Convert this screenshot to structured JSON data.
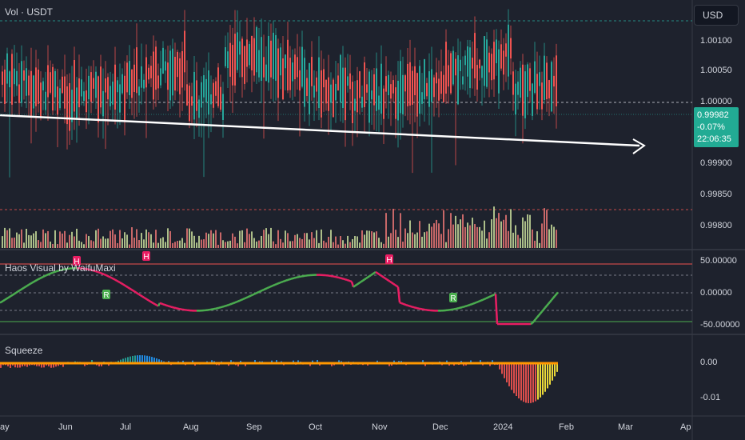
{
  "symbol_legend": "Vol · USDT",
  "currency_button": "USD",
  "last_price": {
    "value": "0.99982",
    "change": "-0.07%",
    "countdown": "22:06:35"
  },
  "main_axis_labels": [
    "1.00100",
    "1.00050",
    "1.00000",
    "0.99900",
    "0.99850",
    "0.99800"
  ],
  "indicator1": {
    "title": "Haos Visual by WaifuMaxi",
    "axis_labels": [
      "50.00000",
      "0.00000",
      "-50.00000"
    ],
    "markers": [
      "H",
      "H",
      "H",
      "R",
      "R"
    ]
  },
  "indicator2": {
    "title": "Squeeze",
    "axis_labels": [
      "0.00",
      "-0.01"
    ]
  },
  "time_axis": [
    "ay",
    "Jun",
    "Jul",
    "Aug",
    "Sep",
    "Oct",
    "Nov",
    "Dec",
    "2024",
    "Feb",
    "Mar",
    "Ap"
  ],
  "colors": {
    "background": "#1e222d",
    "up": "#26a69a",
    "down": "#ef5350",
    "osc_up": "#4caf50",
    "osc_down": "#e91e63",
    "squeeze_line": "#ff9800",
    "price_tag": "#22ab94"
  }
}
